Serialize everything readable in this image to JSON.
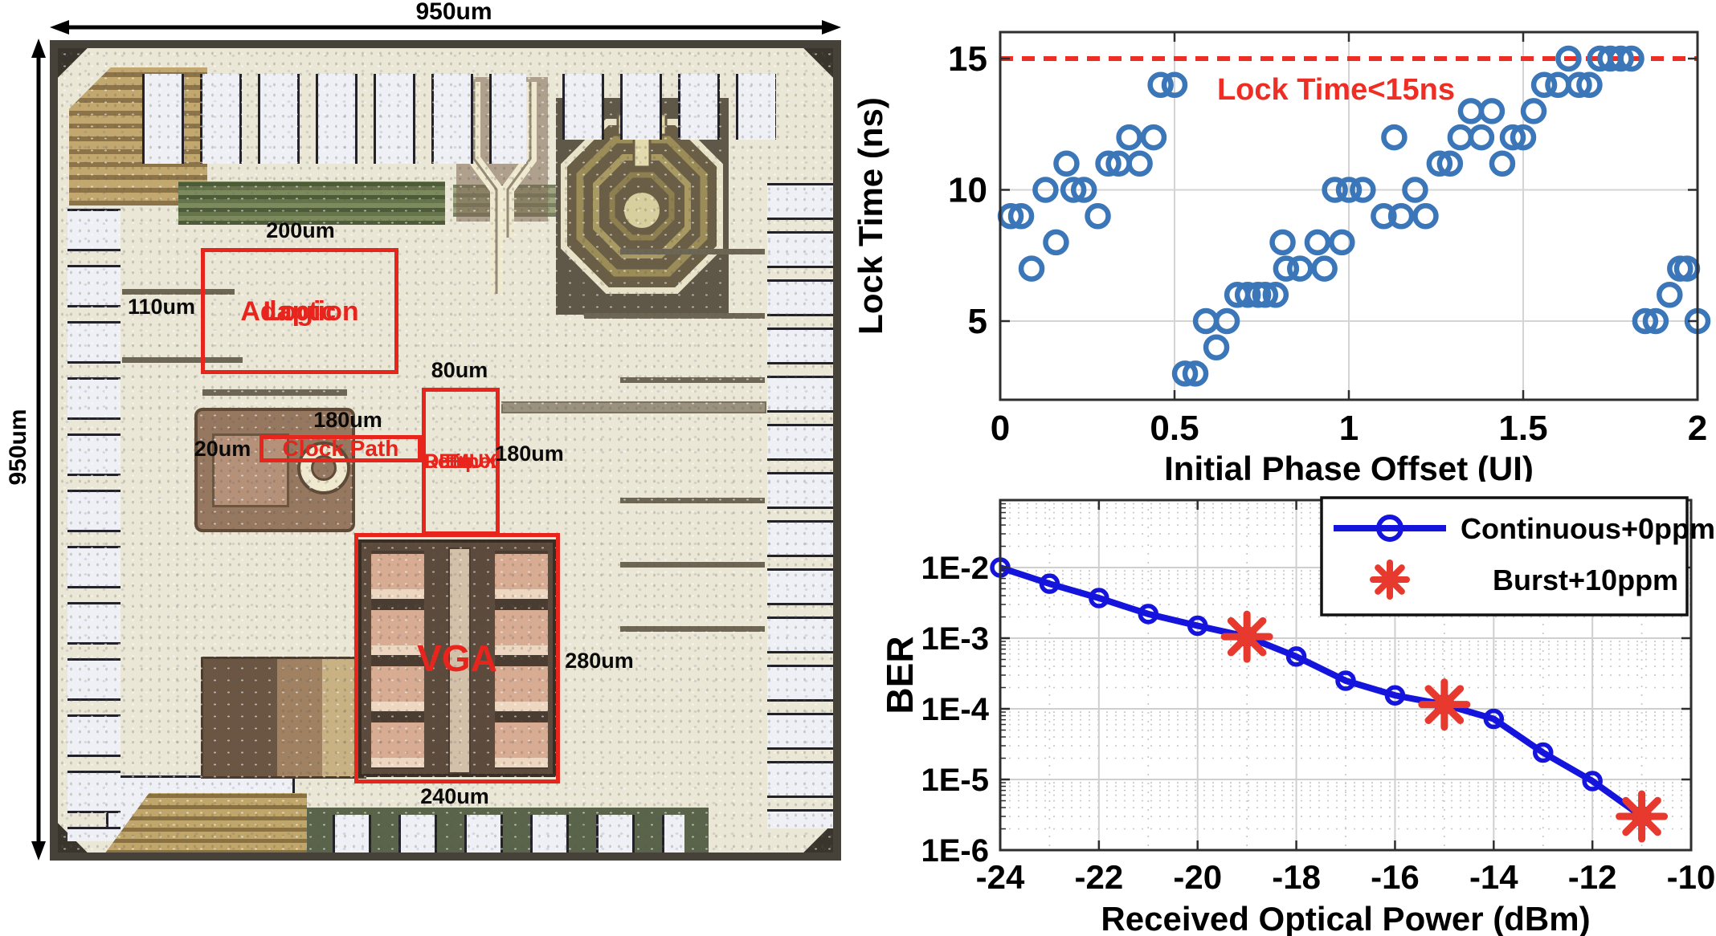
{
  "die": {
    "top_dim": "950um",
    "left_dim": "950um",
    "blocks": {
      "adaption": {
        "line1": "Adaption",
        "line2": "Logic",
        "dim_top": "200um",
        "dim_left": "110um"
      },
      "clock": {
        "label": "Clock Path",
        "dim_top": "180um",
        "dim_left": "20um"
      },
      "demux": {
        "lines": [
          "DEMUX",
          "+",
          "Eq.",
          "+",
          "Retimer"
        ],
        "dim_top": "80um",
        "dim_right": "180um"
      },
      "vga": {
        "label": "VGA",
        "dim_right": "280um",
        "dim_bottom": "240um"
      }
    }
  },
  "colors": {
    "annotation_red": "#e8251d",
    "scatter_blue": "#3a76b8",
    "threshold_red": "#ee2d24",
    "ber_blue": "#1414dd",
    "burst_red": "#e8392e",
    "grid_gray": "#d4d4d4",
    "axis_dark": "#2e2e2e"
  },
  "chart_data": [
    {
      "type": "scatter",
      "title": "",
      "xlabel": "Initial Phase Offset (UI)",
      "ylabel": "Lock Time (ns)",
      "xlim": [
        0,
        2
      ],
      "ylim": [
        2,
        16
      ],
      "xticks": [
        "0",
        "0.5",
        "1",
        "1.5",
        "2"
      ],
      "xtick_values": [
        0,
        0.5,
        1,
        1.5,
        2
      ],
      "yticks": [
        "5",
        "10",
        "15"
      ],
      "ytick_values": [
        5,
        10,
        15
      ],
      "grid": true,
      "legend_position": "none",
      "threshold": {
        "value": 15,
        "label": "Lock Time<15ns"
      },
      "points": [
        [
          0.03,
          9
        ],
        [
          0.06,
          9
        ],
        [
          0.09,
          7
        ],
        [
          0.13,
          10
        ],
        [
          0.16,
          8
        ],
        [
          0.19,
          11
        ],
        [
          0.21,
          10
        ],
        [
          0.24,
          10
        ],
        [
          0.28,
          9
        ],
        [
          0.31,
          11
        ],
        [
          0.34,
          11
        ],
        [
          0.37,
          12
        ],
        [
          0.4,
          11
        ],
        [
          0.44,
          12
        ],
        [
          0.46,
          14
        ],
        [
          0.5,
          14
        ],
        [
          0.53,
          3
        ],
        [
          0.56,
          3
        ],
        [
          0.59,
          5
        ],
        [
          0.62,
          4
        ],
        [
          0.65,
          5
        ],
        [
          0.68,
          6
        ],
        [
          0.71,
          6
        ],
        [
          0.74,
          6
        ],
        [
          0.76,
          6
        ],
        [
          0.79,
          6
        ],
        [
          0.81,
          8
        ],
        [
          0.82,
          7
        ],
        [
          0.86,
          7
        ],
        [
          0.91,
          8
        ],
        [
          0.93,
          7
        ],
        [
          0.98,
          8
        ],
        [
          0.96,
          10
        ],
        [
          1.0,
          10
        ],
        [
          1.04,
          10
        ],
        [
          1.1,
          9
        ],
        [
          1.13,
          12
        ],
        [
          1.15,
          9
        ],
        [
          1.19,
          10
        ],
        [
          1.22,
          9
        ],
        [
          1.26,
          11
        ],
        [
          1.29,
          11
        ],
        [
          1.32,
          12
        ],
        [
          1.35,
          13
        ],
        [
          1.38,
          12
        ],
        [
          1.41,
          13
        ],
        [
          1.44,
          11
        ],
        [
          1.47,
          12
        ],
        [
          1.5,
          12
        ],
        [
          1.53,
          13
        ],
        [
          1.56,
          14
        ],
        [
          1.6,
          14
        ],
        [
          1.63,
          15
        ],
        [
          1.66,
          14
        ],
        [
          1.69,
          14
        ],
        [
          1.72,
          15
        ],
        [
          1.75,
          15
        ],
        [
          1.78,
          15
        ],
        [
          1.81,
          15
        ],
        [
          1.85,
          5
        ],
        [
          1.88,
          5
        ],
        [
          1.92,
          6
        ],
        [
          1.95,
          7
        ],
        [
          1.97,
          7
        ],
        [
          2.0,
          5
        ]
      ]
    },
    {
      "type": "line",
      "title": "",
      "xlabel": "Received Optical Power (dBm)",
      "ylabel": "BER",
      "yscale": "log",
      "xlim": [
        -24,
        -10
      ],
      "ylim": [
        1e-06,
        0.09
      ],
      "xticks": [
        "-24",
        "-22",
        "-20",
        "-18",
        "-16",
        "-14",
        "-12",
        "-10"
      ],
      "xtick_values": [
        -24,
        -22,
        -20,
        -18,
        -16,
        -14,
        -12,
        -10
      ],
      "yticks": [
        "1E-2",
        "1E-3",
        "1E-4",
        "1E-5",
        "1E-6"
      ],
      "ytick_exps": [
        -2,
        -3,
        -4,
        -5,
        -6
      ],
      "grid": "major+minor",
      "legend_position": "top-right",
      "series": [
        {
          "name": "Continuous+0ppm",
          "marker": "circle",
          "x": [
            -24,
            -23,
            -22,
            -21,
            -20,
            -19,
            -18,
            -17,
            -16,
            -15,
            -14,
            -13,
            -12,
            -11
          ],
          "y": [
            0.01,
            0.0059,
            0.0037,
            0.0022,
            0.0015,
            0.00105,
            0.00055,
            0.00025,
            0.000155,
            0.000115,
            7.2e-05,
            2.4e-05,
            9.5e-06,
            3e-06
          ]
        },
        {
          "name": "Burst+10ppm",
          "marker": "asterisk",
          "x": [
            -19,
            -15,
            -11
          ],
          "y": [
            0.00105,
            0.000115,
            3e-06
          ]
        }
      ]
    }
  ]
}
